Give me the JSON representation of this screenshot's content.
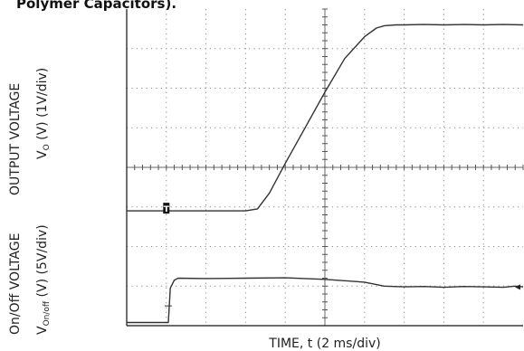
{
  "header_fragment": "Polymer Capacitors).",
  "chart_data": {
    "type": "line",
    "x_axis_label": "TIME, t (2 ms/div)",
    "grid": true,
    "grid_divisions": {
      "x": 10,
      "y": 8
    },
    "y_labels": {
      "output": {
        "line1": "OUTPUT VOLTAGE",
        "line2_main": "V",
        "line2_sub": "O",
        "line2_rest": " (V) (1V/div)"
      },
      "onoff": {
        "line1": "On/Off VOLTAGE",
        "line2_main": "V",
        "line2_sub": "On/off",
        "line2_rest": " (V) (5V/div)"
      }
    },
    "trigger_marker": "T",
    "units": {
      "x": "div",
      "y": "div"
    },
    "series": [
      {
        "channel": "output",
        "x": [
          0,
          0.5,
          1.0,
          1.5,
          2.0,
          2.5,
          3.0,
          3.3,
          3.6,
          4.0,
          4.5,
          5.0,
          5.5,
          6.0,
          6.3,
          6.5,
          6.8,
          7.0,
          7.5,
          8.0,
          8.5,
          9.0,
          9.5,
          10
        ],
        "y": [
          2.9,
          2.9,
          2.9,
          2.9,
          2.9,
          2.9,
          2.9,
          2.95,
          3.35,
          4.1,
          5.0,
          5.9,
          6.75,
          7.3,
          7.52,
          7.58,
          7.6,
          7.6,
          7.61,
          7.6,
          7.61,
          7.6,
          7.61,
          7.6
        ]
      },
      {
        "channel": "onoff",
        "x": [
          0,
          0.6,
          1.05,
          1.1,
          1.2,
          1.3,
          2.0,
          3.0,
          4.0,
          5.0,
          6.0,
          6.5,
          7.0,
          7.5,
          8.0,
          8.5,
          9.0,
          9.5,
          9.8,
          10
        ],
        "y": [
          0.08,
          0.08,
          0.08,
          0.95,
          1.15,
          1.2,
          1.19,
          1.2,
          1.21,
          1.17,
          1.1,
          1.0,
          0.98,
          0.99,
          0.97,
          0.99,
          0.98,
          0.97,
          1.0,
          0.98
        ]
      }
    ],
    "right_marker": "◂"
  }
}
